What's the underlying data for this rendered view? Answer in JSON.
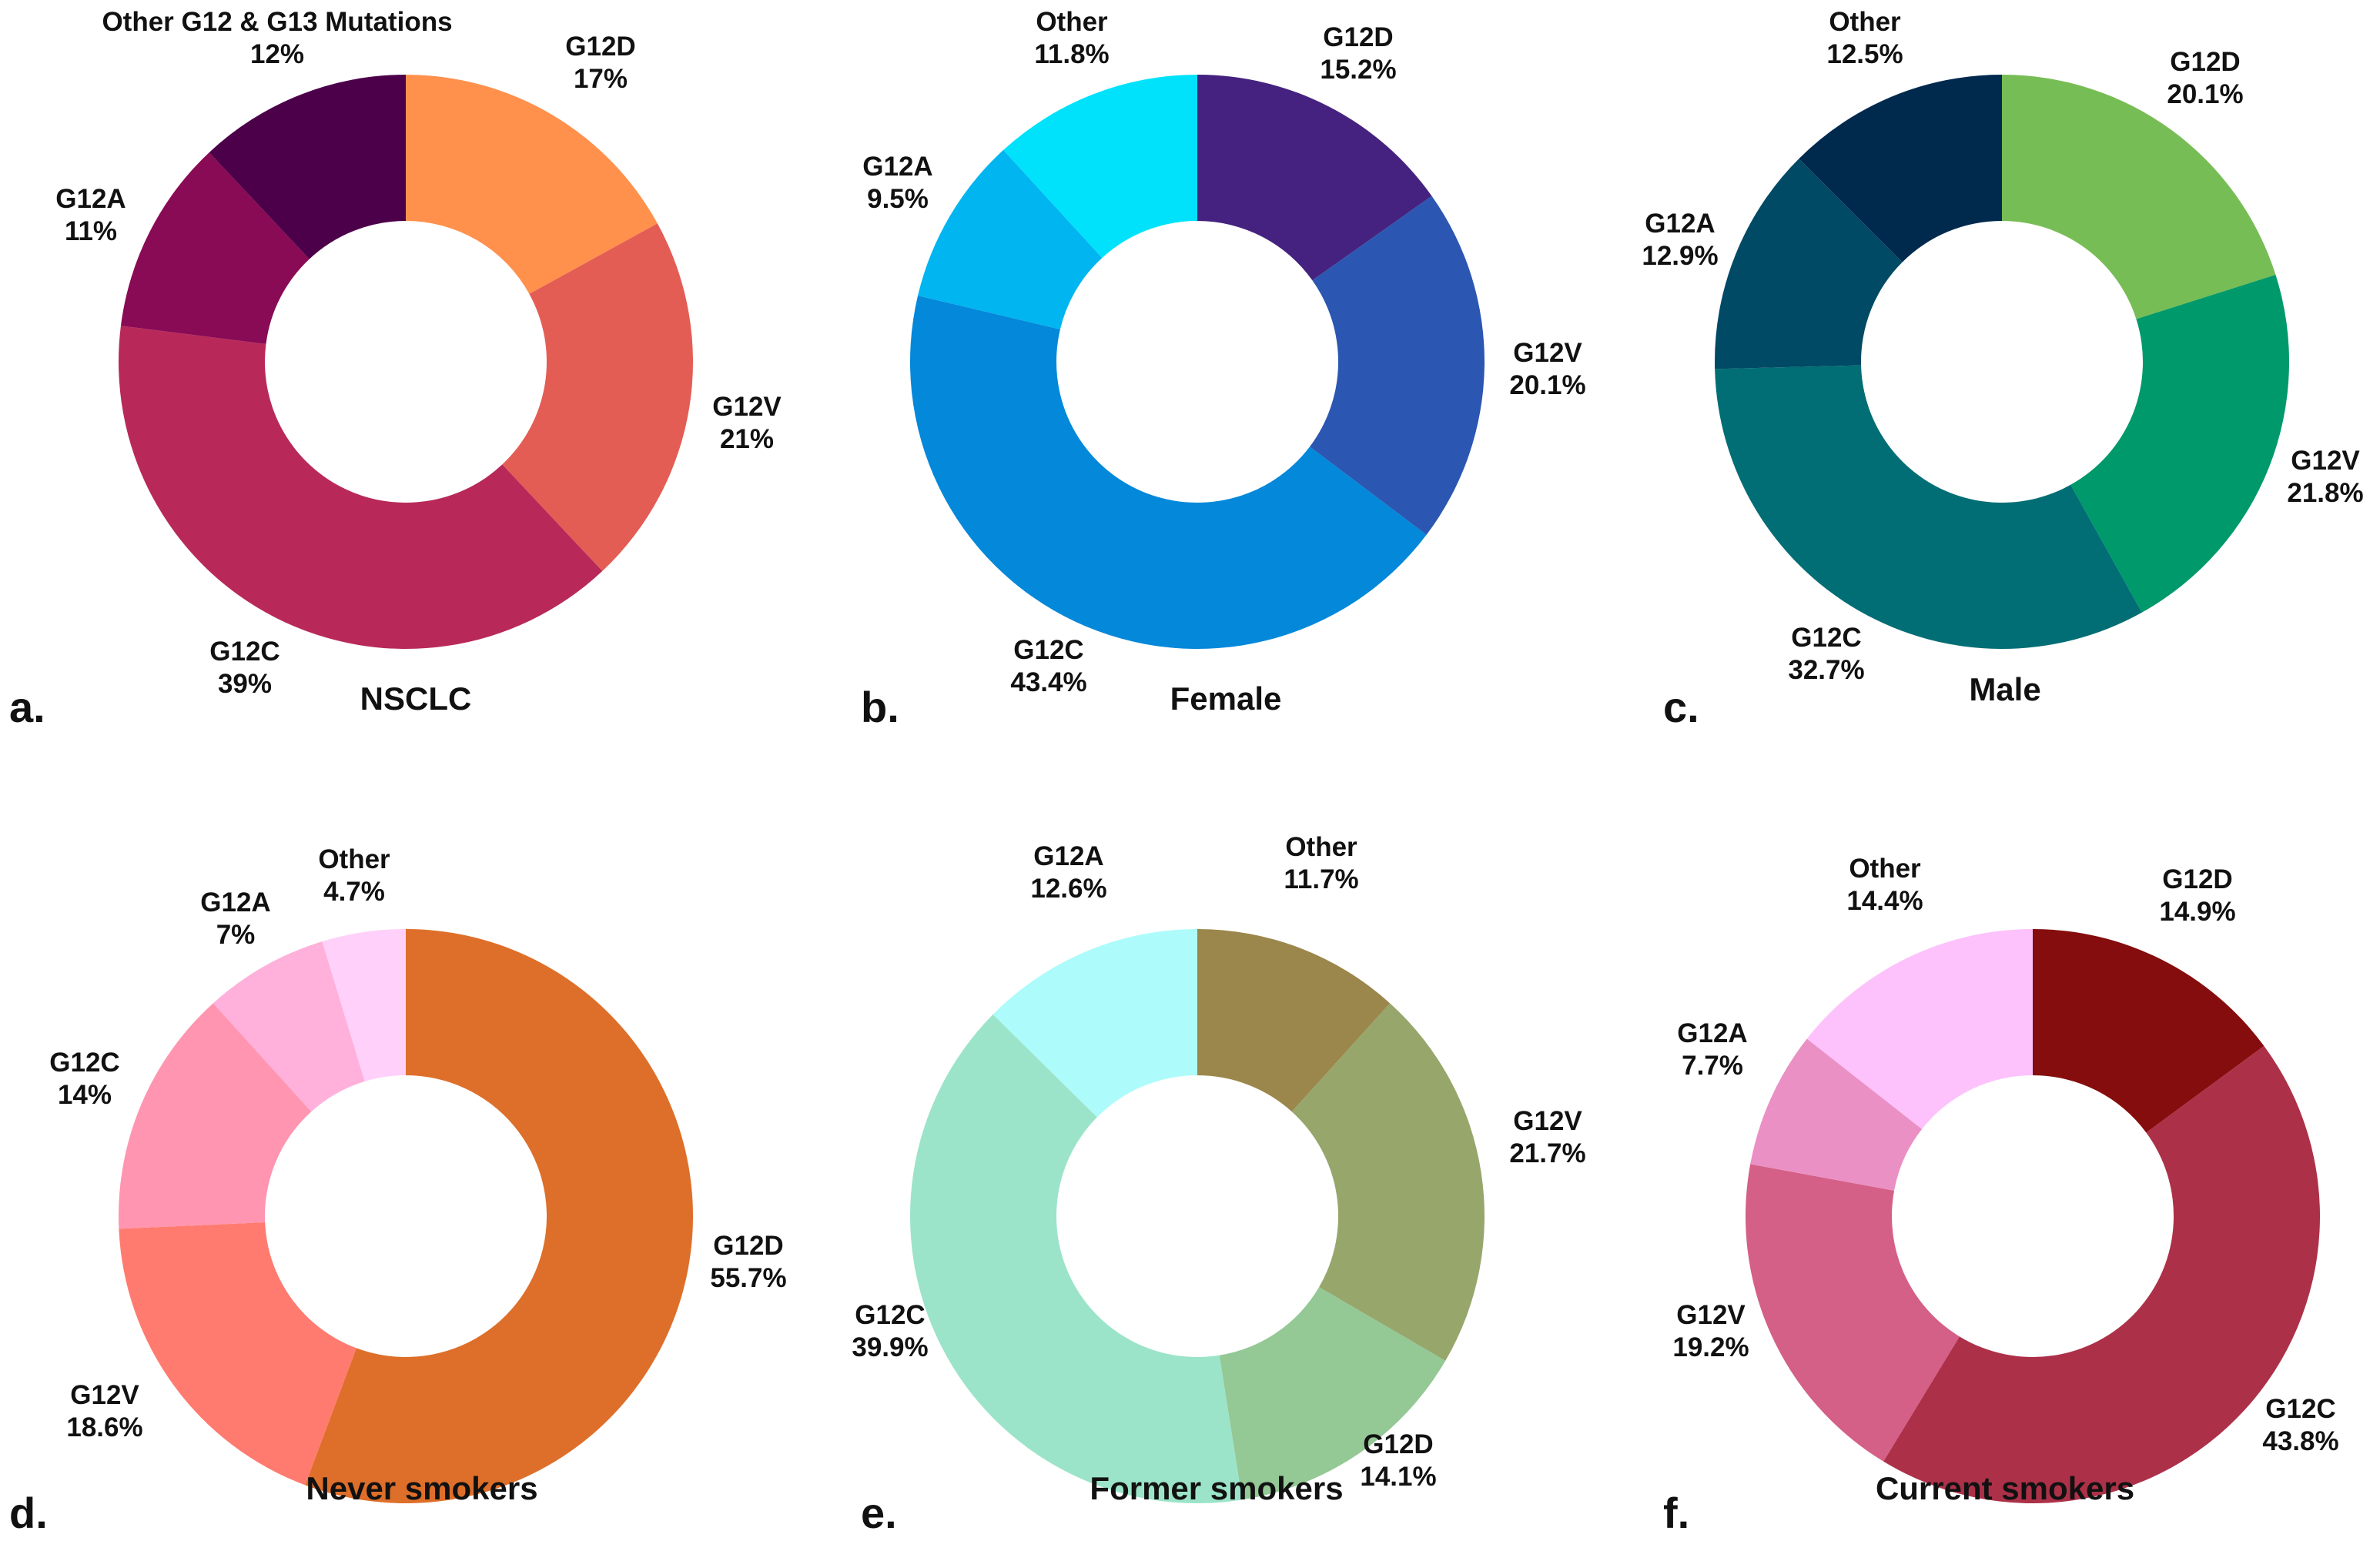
{
  "chart_data": [
    {
      "type": "pie",
      "panel": "a.",
      "title": "NSCLC",
      "slices": [
        {
          "label": "G12D",
          "value": 17,
          "display": "17%",
          "color": "#FF914D"
        },
        {
          "label": "G12V",
          "value": 21,
          "display": "21%",
          "color": "#E35D55"
        },
        {
          "label": "G12C",
          "value": 39,
          "display": "39%",
          "color": "#B8295A"
        },
        {
          "label": "G12A",
          "value": 11,
          "display": "11%",
          "color": "#890A55"
        },
        {
          "label": "Other G12 & G13 Mutations",
          "value": 12,
          "display": "12%",
          "color": "#4D004A"
        }
      ]
    },
    {
      "type": "pie",
      "panel": "b.",
      "title": "Female",
      "slices": [
        {
          "label": "G12D",
          "value": 15.2,
          "display": "15.2%",
          "color": "#45227F"
        },
        {
          "label": "G12V",
          "value": 20.1,
          "display": "20.1%",
          "color": "#2B57B2"
        },
        {
          "label": "G12C",
          "value": 43.4,
          "display": "43.4%",
          "color": "#0388DA"
        },
        {
          "label": "G12A",
          "value": 9.5,
          "display": "9.5%",
          "color": "#00B5F0"
        },
        {
          "label": "Other",
          "value": 11.8,
          "display": "11.8%",
          "color": "#00E2FC"
        }
      ]
    },
    {
      "type": "pie",
      "panel": "c.",
      "title": "Male",
      "slices": [
        {
          "label": "G12D",
          "value": 20.1,
          "display": "20.1%",
          "color": "#77BD55"
        },
        {
          "label": "G12V",
          "value": 21.8,
          "display": "21.8%",
          "color": "#00996B"
        },
        {
          "label": "G12C",
          "value": 32.7,
          "display": "32.7%",
          "color": "#006E74"
        },
        {
          "label": "G12A",
          "value": 12.9,
          "display": "12.9%",
          "color": "#004A65"
        },
        {
          "label": "Other",
          "value": 12.5,
          "display": "12.5%",
          "color": "#00294E"
        }
      ]
    },
    {
      "type": "pie",
      "panel": "d.",
      "title": "Never smokers",
      "slices": [
        {
          "label": "G12D",
          "value": 55.7,
          "display": "55.7%",
          "color": "#DE6F2A"
        },
        {
          "label": "G12V",
          "value": 18.6,
          "display": "18.6%",
          "color": "#FF7B6F"
        },
        {
          "label": "G12C",
          "value": 14,
          "display": "14%",
          "color": "#FF95B0"
        },
        {
          "label": "G12A",
          "value": 7,
          "display": "7%",
          "color": "#FFB0DB"
        },
        {
          "label": "Other",
          "value": 4.7,
          "display": "4.7%",
          "color": "#FFD0FA"
        }
      ]
    },
    {
      "type": "pie",
      "panel": "e.",
      "title": "Former smokers",
      "slices": [
        {
          "label": "Other",
          "value": 11.7,
          "display": "11.7%",
          "color": "#9B864B"
        },
        {
          "label": "G12V",
          "value": 21.7,
          "display": "21.7%",
          "color": "#97A66B"
        },
        {
          "label": "G12D",
          "value": 14.1,
          "display": "14.1%",
          "color": "#94C895"
        },
        {
          "label": "G12C",
          "value": 39.9,
          "display": "39.9%",
          "color": "#9BE4C9"
        },
        {
          "label": "G12A",
          "value": 12.6,
          "display": "12.6%",
          "color": "#ADFBFB"
        }
      ]
    },
    {
      "type": "pie",
      "panel": "f.",
      "title": "Current smokers",
      "slices": [
        {
          "label": "G12D",
          "value": 14.9,
          "display": "14.9%",
          "color": "#850D0D"
        },
        {
          "label": "G12C",
          "value": 43.8,
          "display": "43.8%",
          "color": "#AC3148"
        },
        {
          "label": "G12V",
          "value": 19.2,
          "display": "19.2%",
          "color": "#D45F87"
        },
        {
          "label": "G12A",
          "value": 7.7,
          "display": "7.7%",
          "color": "#EA90C4"
        },
        {
          "label": "Other",
          "value": 14.4,
          "display": "14.4%",
          "color": "#FDC2FC"
        }
      ]
    }
  ]
}
